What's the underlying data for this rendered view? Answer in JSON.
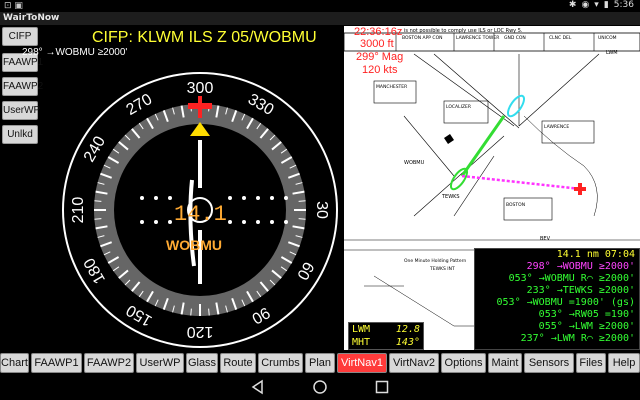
{
  "statusbar": {
    "left": "⊡ ▣",
    "time": "5:36"
  },
  "titlebar": {
    "title": "WairToNow"
  },
  "sidebar": [
    {
      "label": "CIFP"
    },
    {
      "label": "FAAWP1"
    },
    {
      "label": "FAAWP2"
    },
    {
      "label": "UserWP"
    },
    {
      "label": "Unlkd"
    }
  ],
  "cifp": {
    "title": "CIFP: KLWM ILS Z 05/WOBMU",
    "subtitle": "298° →WOBMU ≥2000'"
  },
  "hsi": {
    "headings": [
      "300",
      "330",
      "30",
      "60",
      "90",
      "120",
      "150",
      "180",
      "210",
      "240",
      "270"
    ],
    "dme": "14.1",
    "waypoint": "WOBMU",
    "colors": {
      "bug": "#ff2222",
      "heading_marker": "#ffcc00",
      "text": "#ffaa33"
    }
  },
  "overlay": {
    "time": "22:36:16z",
    "altitude": "3000 ft",
    "course": "299° Mag",
    "speed": "120 kts"
  },
  "infobox": {
    "lines": [
      {
        "text": "14.1 nm  07:04",
        "color": "#ffff33"
      },
      {
        "text": "298° →WOBMU ≥2000'",
        "color": "#ff44ff"
      },
      {
        "text": "053° →WOBMU R⌒ ≥2000'",
        "color": "#33ff33"
      },
      {
        "text": "233° →TEWKS ≥2000'",
        "color": "#33ff33"
      },
      {
        "text": "053° →WOBMU =1900' (gs)",
        "color": "#33ff33"
      },
      {
        "text": "053° →RW05 =190'",
        "color": "#33ff33"
      },
      {
        "text": "055° →LWM ≥2000'",
        "color": "#33ff33"
      },
      {
        "text": "237° →LWM R⌒ ≥2000'",
        "color": "#33ff33"
      }
    ]
  },
  "lwmbox": {
    "label1": "LWM",
    "value1": "12.8",
    "label2": "MHT",
    "value2": "143°"
  },
  "tabs": [
    {
      "label": "Chart",
      "active": false
    },
    {
      "label": "FAAWP1",
      "active": false
    },
    {
      "label": "FAAWP2",
      "active": false
    },
    {
      "label": "UserWP",
      "active": false
    },
    {
      "label": "Glass",
      "active": false
    },
    {
      "label": "Route",
      "active": false
    },
    {
      "label": "Crumbs",
      "active": false
    },
    {
      "label": "Plan",
      "active": false
    },
    {
      "label": "VirtNav1",
      "active": true
    },
    {
      "label": "VirtNav2",
      "active": false
    },
    {
      "label": "Options",
      "active": false
    },
    {
      "label": "Maint",
      "active": false
    },
    {
      "label": "Sensors",
      "active": false
    },
    {
      "label": "Files",
      "active": false
    },
    {
      "label": "Help",
      "active": false
    }
  ],
  "chart": {
    "header_note": "is not possible to comply use ILS or LOC Rwy 5.",
    "labels": [
      "BOSTON APP CON",
      "LAWRENCE TOWER",
      "GND CON",
      "CLNC DEL",
      "UNICOM",
      "MANCHESTER",
      "LOCALIZER",
      "LAWRENCE",
      "WOBMU",
      "BOSTON",
      "TEWKS",
      "One Minute Holding Pattern",
      "LWM",
      "MISSED APPROACH",
      "BEV",
      "TEWKS INT"
    ]
  }
}
